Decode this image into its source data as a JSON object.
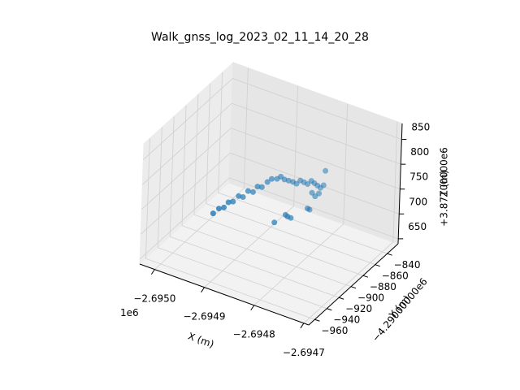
{
  "chart_data": {
    "type": "scatter3d",
    "title": "Walk_gnss_log_2023_02_11_14_20_28",
    "xlabel": "X (m)",
    "ylabel": "Y (m)",
    "zlabel": "Z (m)",
    "x_offset_label": "1e6",
    "y_offset_label": "−4.29000000e6",
    "z_offset_label": "+3.87100000e6",
    "color": "#1f77b4",
    "grid": true,
    "xlim": [
      -2.69503,
      -2.69469
    ],
    "ylim": [
      -970,
      -822
    ],
    "zlim": [
      640,
      882
    ],
    "xticks": [
      {
        "value": -2.695,
        "label": "−2.6950"
      },
      {
        "value": -2.6949,
        "label": "−2.6949"
      },
      {
        "value": -2.6948,
        "label": "−2.6948"
      },
      {
        "value": -2.6947,
        "label": "−2.6947"
      }
    ],
    "yticks": [
      {
        "value": -960,
        "label": "−960"
      },
      {
        "value": -940,
        "label": "−940"
      },
      {
        "value": -920,
        "label": "−920"
      },
      {
        "value": -900,
        "label": "−900"
      },
      {
        "value": -880,
        "label": "−880"
      },
      {
        "value": -860,
        "label": "−860"
      },
      {
        "value": -840,
        "label": "−840"
      }
    ],
    "zticks": [
      650,
      700,
      750,
      800,
      850
    ],
    "x": [
      -2.694955,
      -2.694952,
      -2.694948,
      -2.694945,
      -2.694942,
      -2.694938,
      -2.694934,
      -2.69493,
      -2.694926,
      -2.694922,
      -2.694918,
      -2.694912,
      -2.694906,
      -2.6949,
      -2.694895,
      -2.69489,
      -2.694885,
      -2.69488,
      -2.694875,
      -2.69487,
      -2.694865,
      -2.69486,
      -2.694855,
      -2.69485,
      -2.694845,
      -2.69484,
      -2.694835,
      -2.694838,
      -2.694842,
      -2.694846,
      -2.69486,
      -2.694858,
      -2.694855,
      -2.69484,
      -2.694838,
      -2.69483,
      -2.69487
    ],
    "y": [
      -912,
      -905,
      -900,
      -895,
      -890,
      -884,
      -880,
      -875,
      -870,
      -866,
      -862,
      -858,
      -856,
      -852,
      -850,
      -848,
      -845,
      -842,
      -840,
      -838,
      -836,
      -834,
      -832,
      -831,
      -830,
      -829,
      -828,
      -833,
      -836,
      -838,
      -870,
      -868,
      -865,
      -850,
      -848,
      -830,
      -880
    ],
    "z": [
      705,
      708,
      706,
      712,
      709,
      715,
      710,
      718,
      712,
      720,
      716,
      724,
      730,
      728,
      732,
      726,
      722,
      718,
      714,
      720,
      716,
      712,
      718,
      714,
      710,
      706,
      712,
      700,
      696,
      704,
      690,
      685,
      680,
      688,
      684,
      745,
      682
    ]
  }
}
